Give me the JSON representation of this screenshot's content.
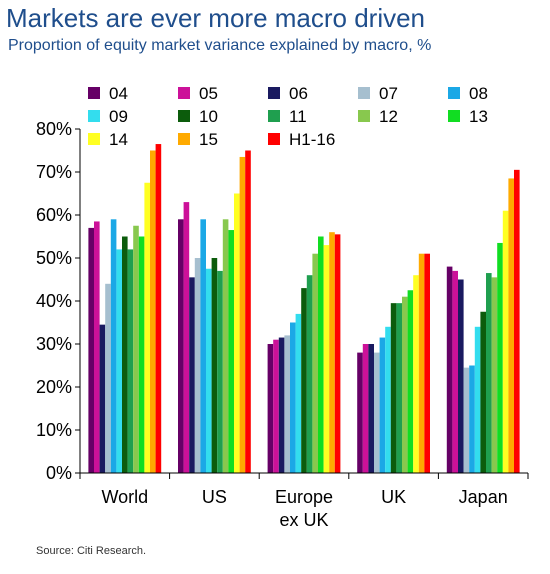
{
  "title": "Markets are ever more macro driven",
  "subtitle": "Proportion of equity market variance explained by macro, %",
  "source": "Source: Citi Research.",
  "chart_data": {
    "type": "bar",
    "title": "Markets are ever more macro driven",
    "subtitle": "Proportion of equity market variance explained by macro, %",
    "xlabel": "",
    "ylabel": "",
    "ylim": [
      0,
      80
    ],
    "yticks": [
      0,
      10,
      20,
      30,
      40,
      50,
      60,
      70,
      80
    ],
    "ytick_labels": [
      "0%",
      "10%",
      "20%",
      "30%",
      "40%",
      "50%",
      "60%",
      "70%",
      "80%"
    ],
    "grid": false,
    "legend_position": "top",
    "categories": [
      {
        "label": "World"
      },
      {
        "label": "US"
      },
      {
        "label": "Europe",
        "label2": "ex UK"
      },
      {
        "label": "UK"
      },
      {
        "label": "Japan"
      }
    ],
    "series": [
      {
        "name": "04",
        "color": "#660066",
        "values": [
          57,
          59,
          30,
          28,
          48
        ]
      },
      {
        "name": "05",
        "color": "#cc1199",
        "values": [
          58.5,
          63,
          31,
          30,
          47
        ]
      },
      {
        "name": "06",
        "color": "#1a1a60",
        "values": [
          34.5,
          45.5,
          31.5,
          30,
          45
        ]
      },
      {
        "name": "07",
        "color": "#a6bfcf",
        "values": [
          44,
          50,
          32,
          28,
          24.5
        ]
      },
      {
        "name": "08",
        "color": "#1ba8e6",
        "values": [
          59,
          59,
          35,
          31.5,
          25
        ]
      },
      {
        "name": "09",
        "color": "#33ddee",
        "values": [
          52,
          47.5,
          37,
          34,
          34
        ]
      },
      {
        "name": "10",
        "color": "#0c5c0c",
        "values": [
          55,
          50,
          43,
          39.5,
          37.5
        ]
      },
      {
        "name": "11",
        "color": "#1f9f4f",
        "values": [
          52,
          47,
          46,
          39.5,
          46.5
        ]
      },
      {
        "name": "12",
        "color": "#88c84e",
        "values": [
          57.5,
          59,
          51,
          41,
          45.5
        ]
      },
      {
        "name": "13",
        "color": "#11dd22",
        "values": [
          55,
          56.5,
          55,
          42.5,
          53.5
        ]
      },
      {
        "name": "14",
        "color": "#ffff22",
        "values": [
          67.5,
          65,
          53,
          46,
          61
        ]
      },
      {
        "name": "15",
        "color": "#ffaa00",
        "values": [
          75,
          73.5,
          56,
          51,
          68.5
        ]
      },
      {
        "name": "H1-16",
        "color": "#ff0000",
        "values": [
          76.5,
          75,
          55.5,
          51,
          70.5
        ]
      }
    ]
  }
}
